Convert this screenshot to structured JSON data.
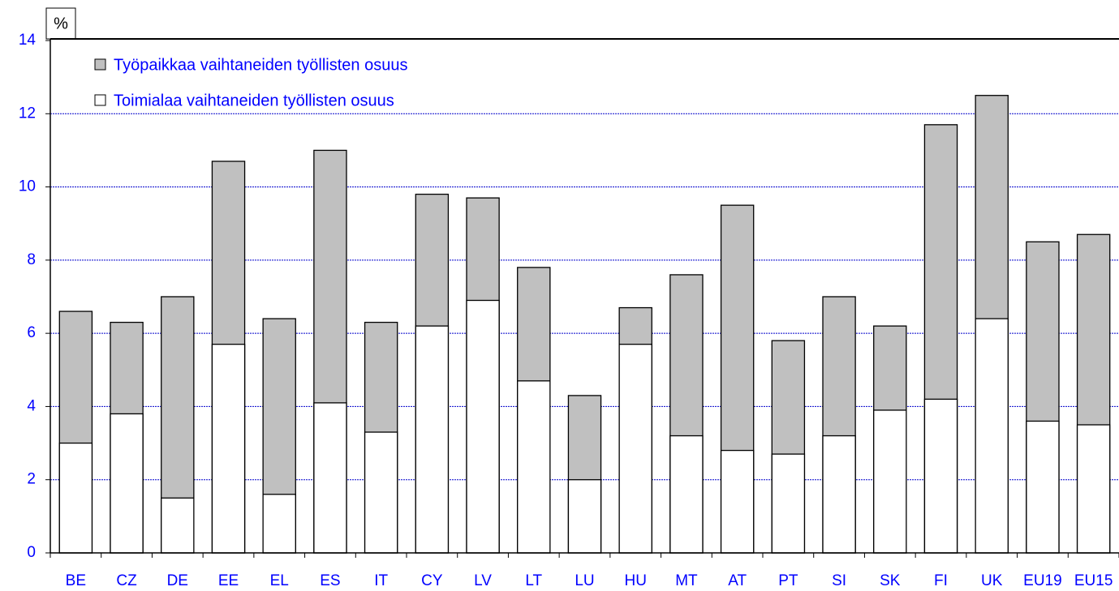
{
  "chart_data": {
    "type": "bar",
    "y_label": "%",
    "categories": [
      "BE",
      "CZ",
      "DE",
      "EE",
      "EL",
      "ES",
      "IT",
      "CY",
      "LV",
      "LT",
      "LU",
      "HU",
      "MT",
      "AT",
      "PT",
      "SI",
      "SK",
      "FI",
      "UK",
      "EU19",
      "EU15"
    ],
    "series": [
      {
        "name": "Työpaikkaa vaihtaneiden työllisten osuus",
        "color": "#c0c0c0",
        "values": [
          6.6,
          6.3,
          7.0,
          10.7,
          6.4,
          11.0,
          6.3,
          9.8,
          9.7,
          7.8,
          4.3,
          6.7,
          7.6,
          9.5,
          5.8,
          7.0,
          6.2,
          11.7,
          12.5,
          8.5,
          8.7
        ]
      },
      {
        "name": "Toimialaa vaihtaneiden työllisten osuus",
        "color": "#ffffff",
        "values": [
          3.0,
          3.8,
          1.5,
          5.7,
          1.6,
          4.1,
          3.3,
          6.2,
          6.9,
          4.7,
          2.0,
          5.7,
          3.2,
          2.8,
          2.7,
          3.2,
          3.9,
          4.2,
          6.4,
          3.6,
          3.5
        ]
      }
    ],
    "ylim": [
      0,
      14
    ],
    "yticks": [
      0,
      2,
      4,
      6,
      8,
      10,
      12,
      14
    ],
    "grid": true
  }
}
